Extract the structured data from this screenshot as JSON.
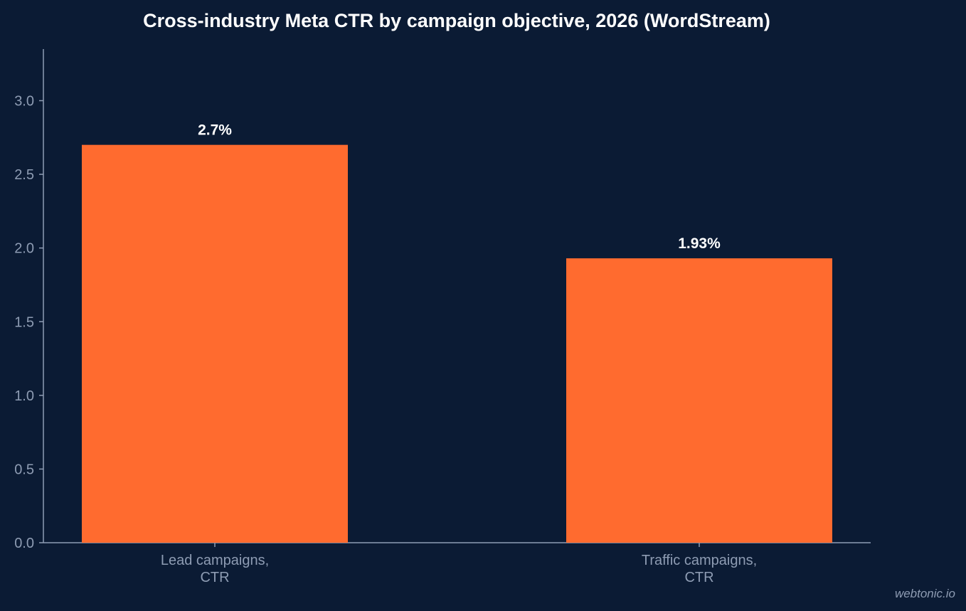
{
  "chart_data": {
    "type": "bar",
    "title": "Cross-industry Meta CTR by campaign objective, 2026 (WordStream)",
    "categories": [
      [
        "Lead campaigns,",
        "CTR"
      ],
      [
        "Traffic campaigns,",
        "CTR"
      ]
    ],
    "values": [
      2.7,
      1.93
    ],
    "data_labels": [
      "2.7%",
      "1.93%"
    ],
    "yticks": [
      "0.0",
      "0.5",
      "1.0",
      "1.5",
      "2.0",
      "2.5",
      "3.0"
    ],
    "ylim": [
      0,
      3.35
    ],
    "grid": false,
    "bar_color": "#ff6b2f",
    "background_color": "#0b1b34"
  },
  "watermark": "webtonic.io"
}
